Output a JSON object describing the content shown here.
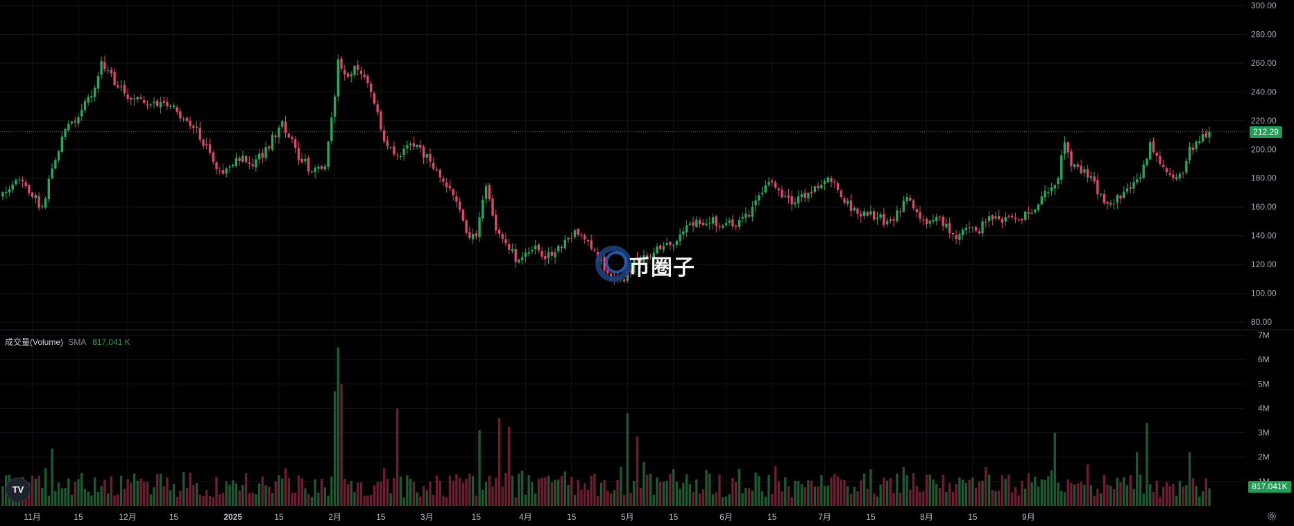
{
  "app": {
    "volume_indicator": {
      "name": "成交量(Volume)",
      "ma_label": "SMA",
      "ma_value": "817.041 K"
    },
    "last_price_label": "212.29",
    "last_volume_label": "817.041K",
    "watermark_text": "币圈子",
    "logo_text": "TV",
    "colors": {
      "up": "#22ab5e",
      "down": "#e0466f",
      "vol_up": "#1d5a32",
      "vol_down": "#6e1e33",
      "tag": "#1f9d52"
    },
    "icons": [
      "tradingview-logo-icon",
      "settings-gear-icon",
      "watermark-logo-icon"
    ]
  },
  "chart_data": [
    {
      "type": "candlestick",
      "title": "",
      "yaxis_ticks": [
        "80.00",
        "100.00",
        "120.00",
        "140.00",
        "160.00",
        "180.00",
        "200.00",
        "220.00",
        "240.00",
        "260.00",
        "280.00",
        "300.00"
      ],
      "ylim": [
        80,
        300
      ],
      "xaxis_ticks": [
        "11月",
        "15",
        "12月",
        "15",
        "2025",
        "15",
        "2月",
        "15",
        "3月",
        "15",
        "4月",
        "15",
        "5月",
        "15",
        "6月",
        "15",
        "7月",
        "15",
        "8月",
        "15",
        "9月"
      ],
      "last_price": 212.29,
      "close_anchors": [
        [
          0,
          170
        ],
        [
          5,
          180
        ],
        [
          10,
          165
        ],
        [
          12,
          158
        ],
        [
          15,
          185
        ],
        [
          19,
          215
        ],
        [
          23,
          222
        ],
        [
          27,
          240
        ],
        [
          30,
          258
        ],
        [
          33,
          250
        ],
        [
          37,
          240
        ],
        [
          42,
          232
        ],
        [
          46,
          232
        ],
        [
          51,
          230
        ],
        [
          54,
          223
        ],
        [
          59,
          215
        ],
        [
          64,
          190
        ],
        [
          68,
          185
        ],
        [
          72,
          195
        ],
        [
          76,
          190
        ],
        [
          80,
          200
        ],
        [
          85,
          218
        ],
        [
          90,
          196
        ],
        [
          94,
          185
        ],
        [
          98,
          188
        ],
        [
          100,
          220
        ],
        [
          102,
          260
        ],
        [
          105,
          253
        ],
        [
          108,
          258
        ],
        [
          111,
          245
        ],
        [
          114,
          225
        ],
        [
          117,
          200
        ],
        [
          120,
          195
        ],
        [
          123,
          205
        ],
        [
          126,
          200
        ],
        [
          130,
          192
        ],
        [
          133,
          178
        ],
        [
          137,
          168
        ],
        [
          141,
          142
        ],
        [
          144,
          138
        ],
        [
          147,
          175
        ],
        [
          150,
          142
        ],
        [
          153,
          138
        ],
        [
          156,
          122
        ],
        [
          159,
          127
        ],
        [
          162,
          130
        ],
        [
          165,
          126
        ],
        [
          168,
          130
        ],
        [
          171,
          135
        ],
        [
          175,
          142
        ],
        [
          179,
          130
        ],
        [
          183,
          118
        ],
        [
          186,
          108
        ],
        [
          189,
          110
        ],
        [
          192,
          122
        ],
        [
          196,
          128
        ],
        [
          201,
          132
        ],
        [
          205,
          138
        ],
        [
          208,
          148
        ],
        [
          211,
          150
        ],
        [
          215,
          150
        ],
        [
          219,
          148
        ],
        [
          223,
          148
        ],
        [
          227,
          155
        ],
        [
          230,
          168
        ],
        [
          234,
          180
        ],
        [
          237,
          168
        ],
        [
          240,
          163
        ],
        [
          244,
          168
        ],
        [
          247,
          172
        ],
        [
          250,
          178
        ],
        [
          254,
          174
        ],
        [
          257,
          162
        ],
        [
          260,
          156
        ],
        [
          263,
          157
        ],
        [
          266,
          152
        ],
        [
          269,
          150
        ],
        [
          272,
          155
        ],
        [
          275,
          165
        ],
        [
          278,
          158
        ],
        [
          281,
          150
        ],
        [
          284,
          152
        ],
        [
          287,
          146
        ],
        [
          290,
          135
        ],
        [
          293,
          145
        ],
        [
          296,
          142
        ],
        [
          300,
          152
        ],
        [
          303,
          150
        ],
        [
          306,
          152
        ],
        [
          309,
          152
        ],
        [
          312,
          155
        ],
        [
          315,
          162
        ],
        [
          318,
          172
        ],
        [
          321,
          180
        ],
        [
          323,
          205
        ],
        [
          325,
          190
        ],
        [
          329,
          186
        ],
        [
          332,
          175
        ],
        [
          336,
          162
        ],
        [
          339,
          166
        ],
        [
          343,
          175
        ],
        [
          346,
          180
        ],
        [
          349,
          205
        ],
        [
          352,
          190
        ],
        [
          355,
          184
        ],
        [
          358,
          180
        ],
        [
          361,
          200
        ],
        [
          365,
          208
        ],
        [
          367,
          212.29
        ]
      ]
    },
    {
      "type": "bar",
      "title": "成交量(Volume)",
      "yaxis_ticks": [
        "1M",
        "2M",
        "3M",
        "4M",
        "5M",
        "6M",
        "7M"
      ],
      "ylim": [
        0,
        7000000
      ],
      "sma_value": 817041,
      "highlights_millions": [
        [
          15,
          2.35
        ],
        [
          101,
          4.7
        ],
        [
          102,
          6.5
        ],
        [
          103,
          5.0
        ],
        [
          120,
          4.0
        ],
        [
          145,
          3.1
        ],
        [
          151,
          3.6
        ],
        [
          154,
          3.25
        ],
        [
          190,
          3.8
        ],
        [
          193,
          2.85
        ],
        [
          320,
          3.0
        ],
        [
          345,
          2.2
        ],
        [
          348,
          3.4
        ],
        [
          361,
          2.2
        ]
      ]
    }
  ]
}
